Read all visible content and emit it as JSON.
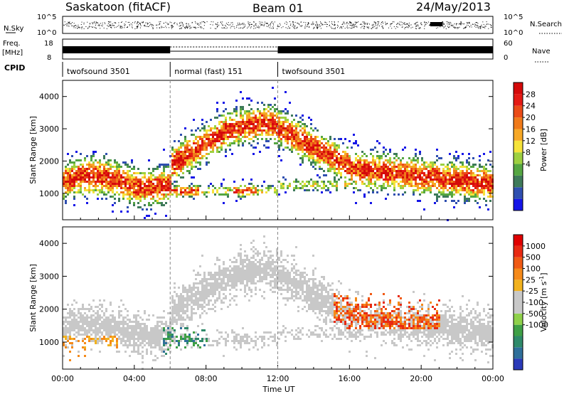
{
  "header": {
    "station": "Saskatoon (fitACF)",
    "beam": "Beam 01",
    "date": "24/May/2013"
  },
  "strip": {
    "nsky_label": "N.Sky",
    "nsky_ticks": [
      "10^5",
      "10^0"
    ],
    "nsearch_label": "N.Search",
    "nsearch_ticks": [
      "10^5",
      "10^0"
    ],
    "freq_label_1": "Freq.",
    "freq_label_2": "[MHz]",
    "freq_ticks": [
      "18",
      "8"
    ],
    "nave_label": "Nave",
    "nave_ticks": [
      "60",
      "0"
    ],
    "cpid_label": "CPID",
    "cpid_segments": [
      {
        "name": "twofsound 3501",
        "start_hour": 0,
        "end_hour": 6
      },
      {
        "name": "normal (fast) 151",
        "start_hour": 6,
        "end_hour": 12
      },
      {
        "name": "twofsound 3501",
        "start_hour": 12,
        "end_hour": 24
      }
    ]
  },
  "colorbars": {
    "power": {
      "label": "Power [dB]",
      "ticks": [
        "28",
        "24",
        "20",
        "16",
        "12",
        "8",
        "4"
      ],
      "colors": [
        "#1515e8",
        "#2f4fb0",
        "#3e7a5a",
        "#55a642",
        "#9ed040",
        "#f6e33a",
        "#f7a826",
        "#f07a1a",
        "#ea4b17",
        "#e41a14",
        "#d40a0a"
      ]
    },
    "velocity": {
      "label": "Velocity [m s^-1]",
      "ticks": [
        "1000",
        "500",
        "100",
        "25",
        "-25",
        "-100",
        "-500",
        "-1000"
      ],
      "colors": [
        "#2a3ab8",
        "#2f6f9a",
        "#2f8a6a",
        "#3fa046",
        "#8fd14a",
        "#c8c8c8",
        "#c8c8c8",
        "#f2b21e",
        "#f58a1a",
        "#f05a14",
        "#e82a12",
        "#e00000"
      ]
    }
  },
  "chart_data": [
    {
      "type": "heatmap",
      "title": "Power",
      "xlabel": "Time UT",
      "ylabel": "Slant Range [km]",
      "x_ticks": [
        "00:00",
        "04:00",
        "08:00",
        "12:00",
        "16:00",
        "20:00",
        "00:00"
      ],
      "y_ticks": [
        "1000",
        "2000",
        "3000",
        "4000"
      ],
      "xlim_hours": [
        0,
        24
      ],
      "ylim_km": [
        180,
        4500
      ],
      "colorbar_label": "Power [dB]",
      "colorbar_ticks": [
        28,
        24,
        20,
        16,
        12,
        8,
        4
      ]
    },
    {
      "type": "heatmap",
      "title": "Velocity",
      "xlabel": "Time UT",
      "ylabel": "Slant Range [km]",
      "x_ticks": [
        "00:00",
        "04:00",
        "08:00",
        "12:00",
        "16:00",
        "20:00",
        "00:00"
      ],
      "y_ticks": [
        "1000",
        "2000",
        "3000",
        "4000"
      ],
      "xlim_hours": [
        0,
        24
      ],
      "ylim_km": [
        180,
        4500
      ],
      "colorbar_label": "Velocity [m s^-1]",
      "colorbar_ticks": [
        1000,
        500,
        100,
        25,
        -25,
        -100,
        -500,
        -1000
      ]
    }
  ],
  "footer": {
    "xlabel": "Time UT"
  }
}
